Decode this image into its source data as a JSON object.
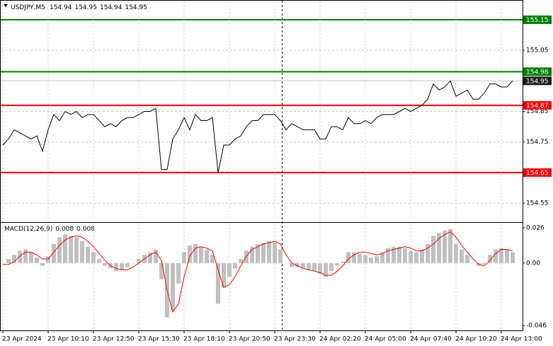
{
  "chart_data": [
    {
      "type": "line",
      "title": "USDJPY,M5",
      "ohlc": [
        154.94,
        154.95,
        154.94,
        154.95
      ],
      "categories": [
        "23 Apr 2024",
        null,
        null,
        null,
        null,
        null,
        null,
        null,
        "23 Apr 10:10",
        null,
        null,
        null,
        null,
        null,
        null,
        null,
        "23 Apr 12:50",
        null,
        null,
        null,
        null,
        null,
        null,
        null,
        "23 Apr 15:30",
        null,
        null,
        null,
        null,
        null,
        null,
        null,
        "23 Apr 18:10",
        null,
        null,
        null,
        null,
        null,
        null,
        null,
        "23 Apr 20:50",
        null,
        null,
        null,
        null,
        null,
        null,
        null,
        "23 Apr 23:30",
        null,
        null,
        null,
        null,
        null,
        null,
        null,
        "24 Apr 02:20",
        null,
        null,
        null,
        null,
        null,
        null,
        null,
        "24 Apr 05:00",
        null,
        null,
        null,
        null,
        null,
        null,
        null,
        "24 Apr 07:40",
        null,
        null,
        null,
        null,
        null,
        null,
        null,
        "24 Apr 10:20",
        null,
        null,
        null,
        null,
        null,
        null,
        null,
        "24 Apr 13:00",
        null,
        null
      ],
      "values": [
        154.74,
        154.76,
        154.79,
        154.78,
        154.77,
        154.76,
        154.77,
        154.72,
        154.79,
        154.84,
        154.82,
        154.85,
        154.84,
        154.85,
        154.83,
        154.84,
        154.84,
        154.82,
        154.8,
        154.81,
        154.8,
        154.82,
        154.83,
        154.83,
        154.84,
        154.85,
        154.85,
        154.86,
        154.66,
        154.66,
        154.76,
        154.79,
        154.83,
        154.79,
        154.84,
        154.82,
        154.82,
        154.83,
        154.65,
        154.74,
        154.74,
        154.76,
        154.77,
        154.8,
        154.82,
        154.82,
        154.84,
        154.84,
        154.84,
        154.82,
        154.79,
        154.81,
        154.8,
        154.79,
        154.79,
        154.79,
        154.76,
        154.76,
        154.8,
        154.8,
        154.79,
        154.83,
        154.81,
        154.81,
        154.82,
        154.81,
        154.83,
        154.84,
        154.84,
        154.84,
        154.85,
        154.86,
        154.85,
        154.86,
        154.87,
        154.89,
        154.94,
        154.92,
        154.93,
        154.95,
        154.9,
        154.91,
        154.92,
        154.89,
        154.89,
        154.91,
        154.94,
        154.94,
        154.93,
        154.93,
        154.95
      ],
      "color": "#000000",
      "ylim": [
        154.49,
        155.21
      ],
      "yticks": [
        155.05,
        154.85,
        154.75,
        154.55
      ],
      "grid": true,
      "levels": [
        {
          "value": 155.15,
          "color": "#008000"
        },
        {
          "value": 154.98,
          "color": "#008000"
        },
        {
          "value": 154.87,
          "color": "#ff0000"
        },
        {
          "value": 154.65,
          "color": "#ff0000"
        }
      ],
      "last_price": 154.95
    },
    {
      "type": "macd",
      "title": "MACD(12,26,9)",
      "title_values": [
        0.008,
        0.008
      ],
      "values": [
        0.0,
        0.003,
        0.006,
        0.009,
        0.01,
        0.008,
        0.004,
        -0.002,
        0.005,
        0.014,
        0.019,
        0.021,
        0.02,
        0.019,
        0.016,
        0.012,
        0.008,
        0.003,
        -0.002,
        -0.004,
        -0.006,
        -0.005,
        -0.003,
        0.0,
        0.003,
        0.006,
        0.008,
        0.01,
        -0.012,
        -0.04,
        -0.035,
        -0.015,
        0.008,
        0.013,
        0.014,
        0.012,
        0.01,
        0.006,
        -0.03,
        -0.018,
        -0.01,
        -0.004,
        0.003,
        0.009,
        0.012,
        0.014,
        0.015,
        0.016,
        0.015,
        0.01,
        0.0,
        -0.003,
        -0.003,
        -0.004,
        -0.005,
        -0.006,
        -0.008,
        -0.01,
        -0.006,
        -0.002,
        0.001,
        0.008,
        0.008,
        0.007,
        0.006,
        0.004,
        0.005,
        0.008,
        0.011,
        0.012,
        0.012,
        0.011,
        0.009,
        0.008,
        0.01,
        0.014,
        0.02,
        0.022,
        0.024,
        0.025,
        0.014,
        0.01,
        0.006,
        0.0,
        -0.002,
        -0.001,
        0.006,
        0.01,
        0.011,
        0.01,
        0.008
      ],
      "color": "#c0c0c0",
      "signal": [
        -0.001,
        -0.001,
        0.001,
        0.005,
        0.008,
        0.008,
        0.006,
        0.003,
        0.003,
        0.008,
        0.013,
        0.017,
        0.019,
        0.02,
        0.019,
        0.016,
        0.012,
        0.007,
        0.002,
        -0.002,
        -0.004,
        -0.005,
        -0.005,
        -0.003,
        0.0,
        0.003,
        0.006,
        0.008,
        0.002,
        -0.02,
        -0.036,
        -0.03,
        -0.01,
        0.005,
        0.011,
        0.012,
        0.011,
        0.009,
        -0.005,
        -0.018,
        -0.016,
        -0.01,
        -0.002,
        0.005,
        0.01,
        0.012,
        0.014,
        0.015,
        0.016,
        0.014,
        0.006,
        0.0,
        -0.002,
        -0.004,
        -0.005,
        -0.006,
        -0.007,
        -0.009,
        -0.009,
        -0.006,
        -0.002,
        0.003,
        0.006,
        0.008,
        0.008,
        0.007,
        0.006,
        0.007,
        0.009,
        0.01,
        0.011,
        0.012,
        0.011,
        0.009,
        0.009,
        0.011,
        0.014,
        0.018,
        0.021,
        0.023,
        0.019,
        0.013,
        0.008,
        0.003,
        -0.001,
        -0.002,
        0.002,
        0.007,
        0.01,
        0.01,
        0.009
      ],
      "signal_color": "#ff0000",
      "ylim": [
        -0.049,
        0.029
      ],
      "yticks": [
        0.026,
        {
          "value": 0,
          "label": "0.00"
        },
        -0.046
      ]
    }
  ]
}
